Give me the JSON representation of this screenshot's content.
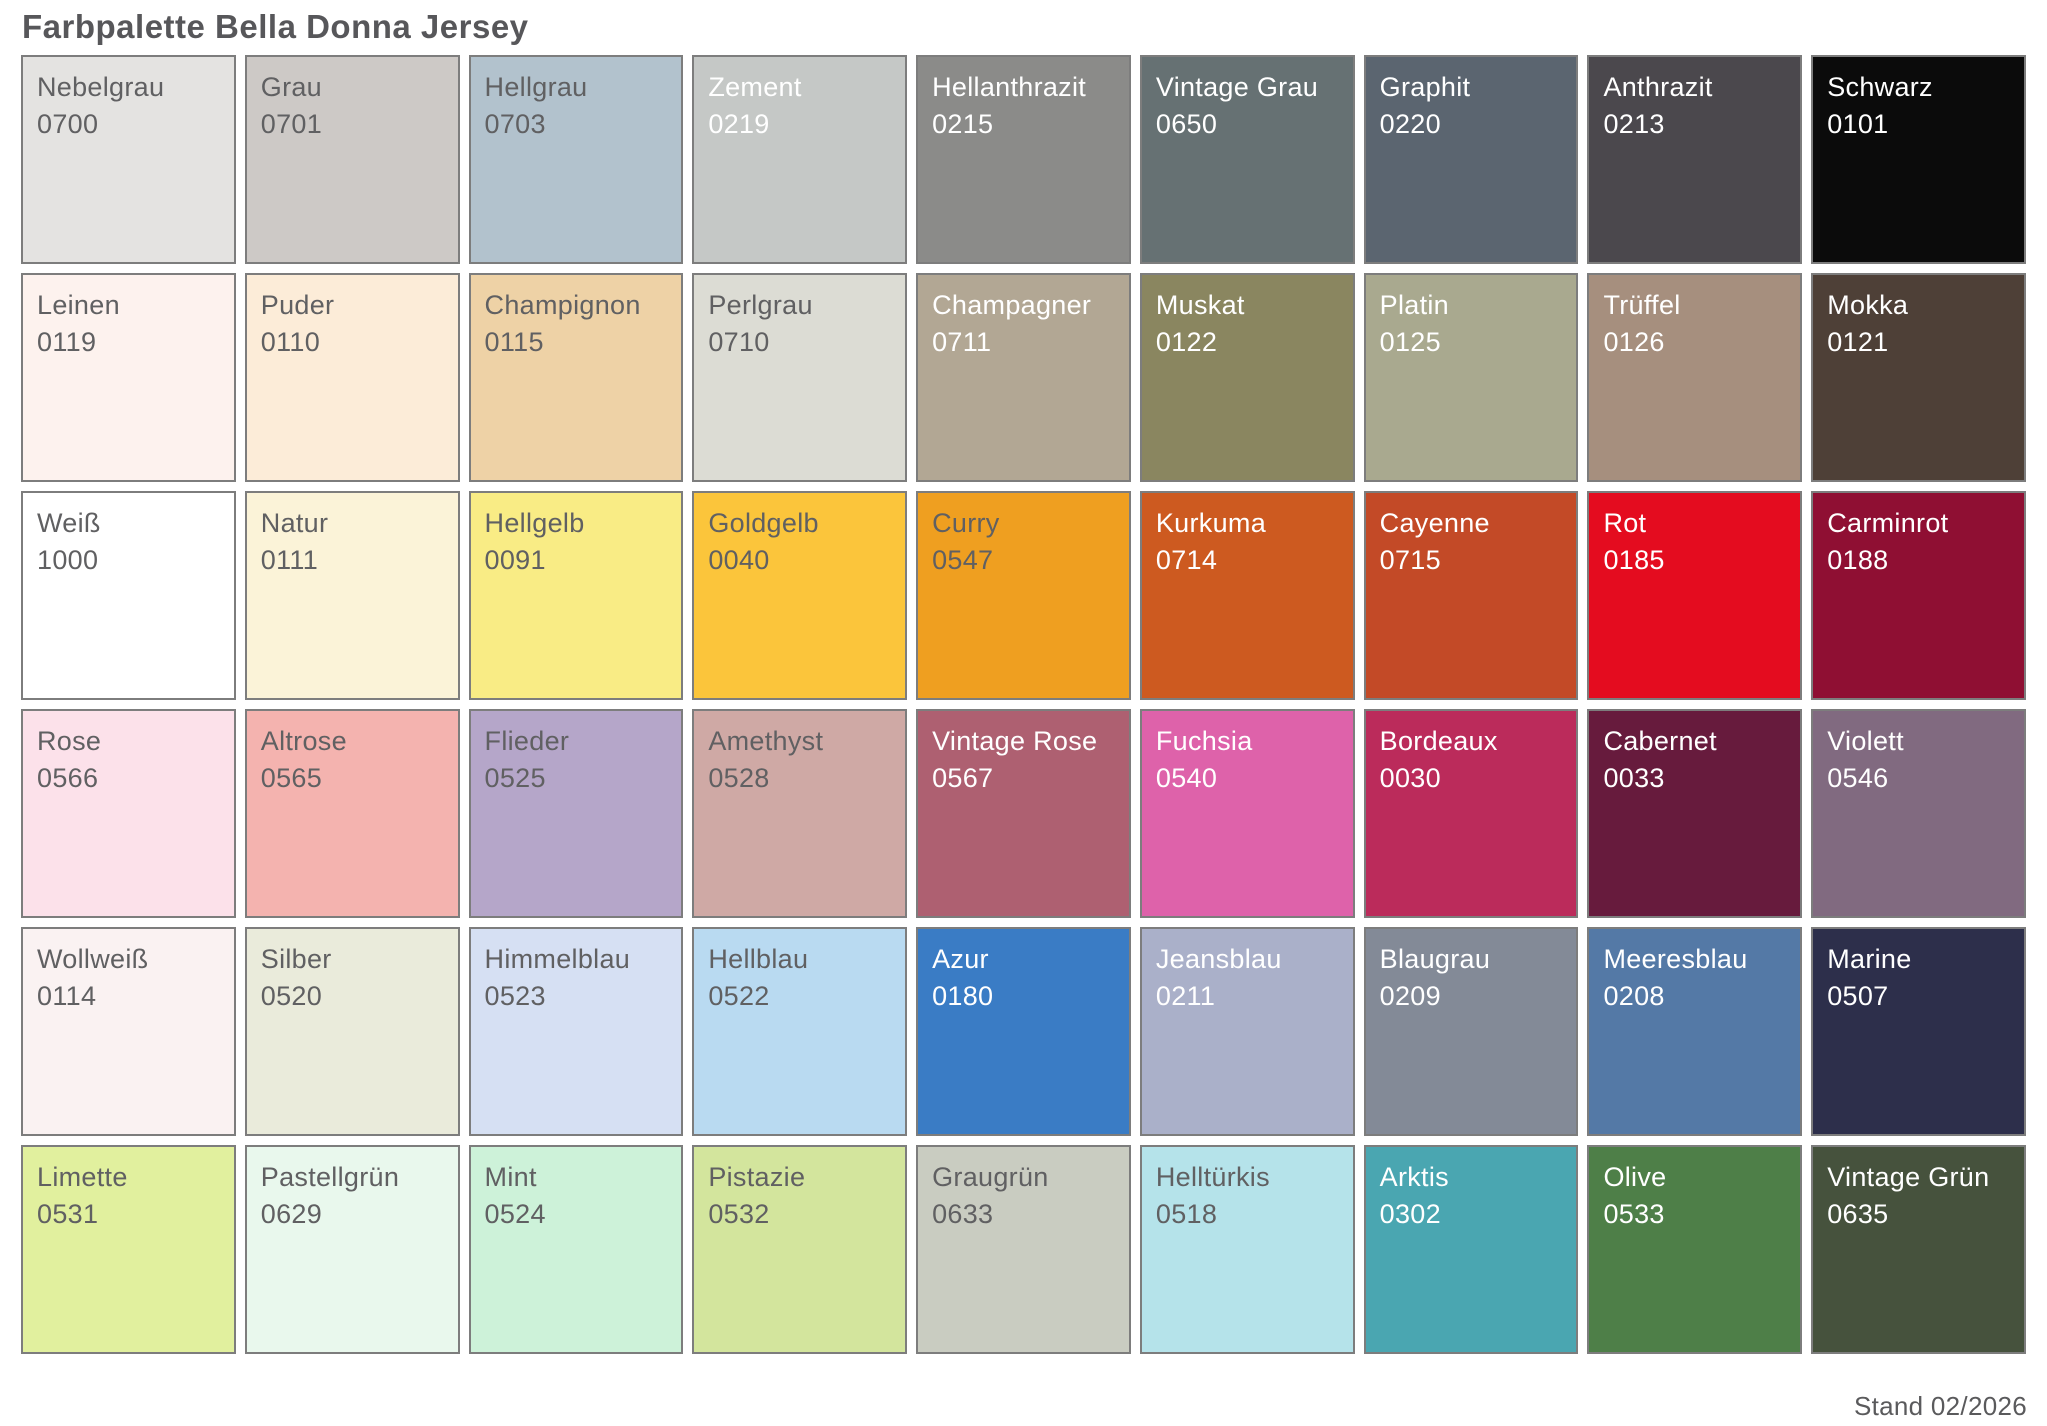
{
  "title": "Farbpalette Bella Donna Jersey",
  "footer": "Stand 02/2026",
  "palette": {
    "columns": 9,
    "rows": 6,
    "dark_text_color": "#606062",
    "light_text_color": "#ffffff",
    "swatch_border_color": "#7d7d7d",
    "swatches": [
      {
        "name": "Nebelgrau",
        "code": "0700",
        "color": "#e4e3e1",
        "text": "#606062"
      },
      {
        "name": "Grau",
        "code": "0701",
        "color": "#cdc9c6",
        "text": "#606062"
      },
      {
        "name": "Hellgrau",
        "code": "0703",
        "color": "#b2c2cd",
        "text": "#606062"
      },
      {
        "name": "Zement",
        "code": "0219",
        "color": "#c5c8c6",
        "text": "#ffffff"
      },
      {
        "name": "Hellanthrazit",
        "code": "0215",
        "color": "#8b8b89",
        "text": "#ffffff"
      },
      {
        "name": "Vintage Grau",
        "code": "0650",
        "color": "#667173",
        "text": "#ffffff"
      },
      {
        "name": "Graphit",
        "code": "0220",
        "color": "#5b6570",
        "text": "#ffffff"
      },
      {
        "name": "Anthrazit",
        "code": "0213",
        "color": "#4b484d",
        "text": "#ffffff"
      },
      {
        "name": "Schwarz",
        "code": "0101",
        "color": "#0b0b0b",
        "text": "#ffffff"
      },
      {
        "name": "Leinen",
        "code": "0119",
        "color": "#fdf2ee",
        "text": "#606062"
      },
      {
        "name": "Puder",
        "code": "0110",
        "color": "#fcecd8",
        "text": "#606062"
      },
      {
        "name": "Champignon",
        "code": "0115",
        "color": "#eed2a6",
        "text": "#606062"
      },
      {
        "name": "Perlgrau",
        "code": "0710",
        "color": "#dcdcd4",
        "text": "#606062"
      },
      {
        "name": "Champagner",
        "code": "0711",
        "color": "#b2a794",
        "text": "#ffffff"
      },
      {
        "name": "Muskat",
        "code": "0122",
        "color": "#8a8660",
        "text": "#ffffff"
      },
      {
        "name": "Platin",
        "code": "0125",
        "color": "#a9a98f",
        "text": "#ffffff"
      },
      {
        "name": "Trüffel",
        "code": "0126",
        "color": "#a68f7e",
        "text": "#ffffff"
      },
      {
        "name": "Mokka",
        "code": "0121",
        "color": "#4e4037",
        "text": "#ffffff"
      },
      {
        "name": "Weiß",
        "code": "1000",
        "color": "#ffffff",
        "text": "#606062"
      },
      {
        "name": "Natur",
        "code": "0111",
        "color": "#fbf3d8",
        "text": "#606062"
      },
      {
        "name": "Hellgelb",
        "code": "0091",
        "color": "#f9ec85",
        "text": "#606062"
      },
      {
        "name": "Goldgelb",
        "code": "0040",
        "color": "#fbc53b",
        "text": "#606062"
      },
      {
        "name": "Curry",
        "code": "0547",
        "color": "#ef9f20",
        "text": "#606062"
      },
      {
        "name": "Kurkuma",
        "code": "0714",
        "color": "#cd5a20",
        "text": "#ffffff"
      },
      {
        "name": "Cayenne",
        "code": "0715",
        "color": "#c34a27",
        "text": "#ffffff"
      },
      {
        "name": "Rot",
        "code": "0185",
        "color": "#e40c1f",
        "text": "#ffffff"
      },
      {
        "name": "Carminrot",
        "code": "0188",
        "color": "#8f0f33",
        "text": "#ffffff"
      },
      {
        "name": "Rose",
        "code": "0566",
        "color": "#fce1ea",
        "text": "#606062"
      },
      {
        "name": "Altrose",
        "code": "0565",
        "color": "#f4b3af",
        "text": "#606062"
      },
      {
        "name": "Flieder",
        "code": "0525",
        "color": "#b5a6c9",
        "text": "#606062"
      },
      {
        "name": "Amethyst",
        "code": "0528",
        "color": "#cfa9a5",
        "text": "#606062"
      },
      {
        "name": "Vintage Rose",
        "code": "0567",
        "color": "#ae6071",
        "text": "#ffffff"
      },
      {
        "name": "Fuchsia",
        "code": "0540",
        "color": "#de62aa",
        "text": "#ffffff"
      },
      {
        "name": "Bordeaux",
        "code": "0030",
        "color": "#bb2b5b",
        "text": "#ffffff"
      },
      {
        "name": "Cabernet",
        "code": "0033",
        "color": "#671b3d",
        "text": "#ffffff"
      },
      {
        "name": "Violett",
        "code": "0546",
        "color": "#816a80",
        "text": "#ffffff"
      },
      {
        "name": "Wollweiß",
        "code": "0114",
        "color": "#faf2f2",
        "text": "#606062"
      },
      {
        "name": "Silber",
        "code": "0520",
        "color": "#eaebdb",
        "text": "#606062"
      },
      {
        "name": "Himmelblau",
        "code": "0523",
        "color": "#d6e0f3",
        "text": "#606062"
      },
      {
        "name": "Hellblau",
        "code": "0522",
        "color": "#b9daf1",
        "text": "#606062"
      },
      {
        "name": "Azur",
        "code": "0180",
        "color": "#3a7cc5",
        "text": "#ffffff"
      },
      {
        "name": "Jeansblau",
        "code": "0211",
        "color": "#aab0c9",
        "text": "#ffffff"
      },
      {
        "name": "Blaugrau",
        "code": "0209",
        "color": "#838a97",
        "text": "#ffffff"
      },
      {
        "name": "Meeresblau",
        "code": "0208",
        "color": "#5479a6",
        "text": "#ffffff"
      },
      {
        "name": "Marine",
        "code": "0507",
        "color": "#2d2f4b",
        "text": "#ffffff"
      },
      {
        "name": "Limette",
        "code": "0531",
        "color": "#e1f09e",
        "text": "#606062"
      },
      {
        "name": "Pastellgrün",
        "code": "0629",
        "color": "#e9f8ed",
        "text": "#606062"
      },
      {
        "name": "Mint",
        "code": "0524",
        "color": "#cdf2d9",
        "text": "#606062"
      },
      {
        "name": "Pistazie",
        "code": "0532",
        "color": "#d3e59d",
        "text": "#606062"
      },
      {
        "name": "Graugrün",
        "code": "0633",
        "color": "#c9ccc1",
        "text": "#606062"
      },
      {
        "name": "Helltürkis",
        "code": "0518",
        "color": "#b5e3ea",
        "text": "#606062"
      },
      {
        "name": "Arktis",
        "code": "0302",
        "color": "#4aa6b1",
        "text": "#ffffff"
      },
      {
        "name": "Olive",
        "code": "0533",
        "color": "#4e7f48",
        "text": "#ffffff"
      },
      {
        "name": "Vintage Grün",
        "code": "0635",
        "color": "#46523d",
        "text": "#ffffff"
      }
    ]
  }
}
